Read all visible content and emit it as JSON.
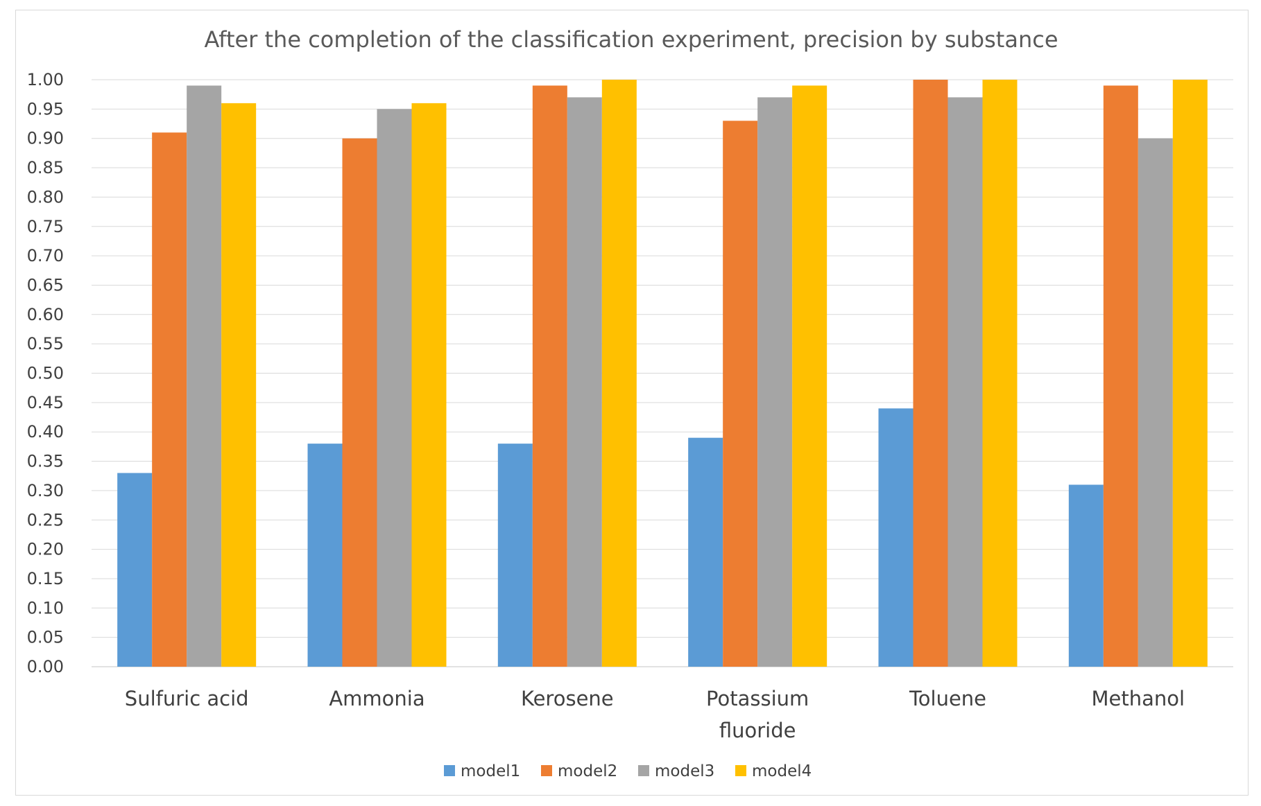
{
  "chart_data": {
    "type": "bar",
    "title": "After the completion of the classification experiment, precision by substance",
    "xlabel": "",
    "ylabel": "",
    "categories": [
      [
        "Sulfuric acid"
      ],
      [
        "Ammonia"
      ],
      [
        "Kerosene"
      ],
      [
        "Potassium",
        "fluoride"
      ],
      [
        "Toluene"
      ],
      [
        "Methanol"
      ]
    ],
    "series": [
      {
        "name": "model1",
        "color": "#5b9bd5",
        "values": [
          0.33,
          0.38,
          0.38,
          0.39,
          0.44,
          0.31
        ]
      },
      {
        "name": "model2",
        "color": "#ed7d31",
        "values": [
          0.91,
          0.9,
          0.99,
          0.93,
          1.0,
          0.99
        ]
      },
      {
        "name": "model3",
        "color": "#a5a5a5",
        "values": [
          0.99,
          0.95,
          0.97,
          0.97,
          0.97,
          0.9
        ]
      },
      {
        "name": "model4",
        "color": "#ffc000",
        "values": [
          0.96,
          0.96,
          1.0,
          0.99,
          1.0,
          1.0
        ]
      }
    ],
    "ylim": [
      0,
      1.0
    ],
    "ytick_step": 0.05,
    "ytick_labels": [
      "0.00",
      "0.05",
      "0.10",
      "0.15",
      "0.20",
      "0.25",
      "0.30",
      "0.35",
      "0.40",
      "0.45",
      "0.50",
      "0.55",
      "0.60",
      "0.65",
      "0.70",
      "0.75",
      "0.80",
      "0.85",
      "0.90",
      "0.95",
      "1.00"
    ],
    "grid": true,
    "legend_position": "bottom"
  }
}
